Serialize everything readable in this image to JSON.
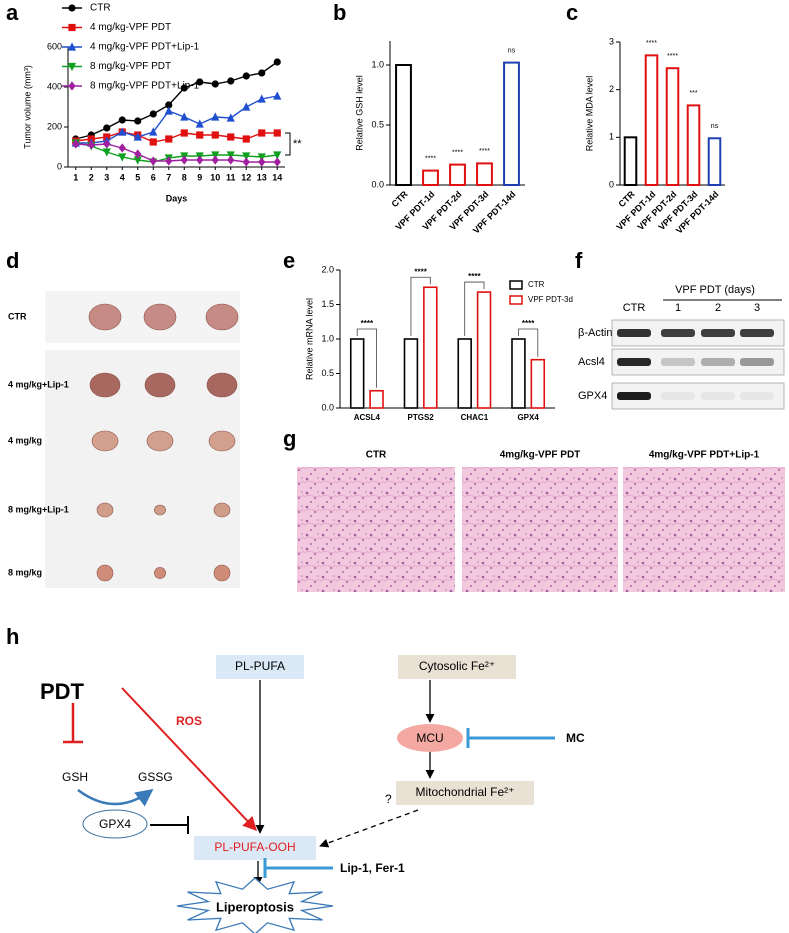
{
  "chart_data": [
    {
      "panel": "a",
      "type": "line",
      "x_label": "Days",
      "y_label": "Tumor volume (mm³)",
      "x": [
        1,
        2,
        3,
        4,
        5,
        6,
        7,
        8,
        9,
        10,
        11,
        12,
        13,
        14
      ],
      "xlim": [
        0.5,
        14.5
      ],
      "xticks": [
        1,
        2,
        3,
        4,
        5,
        6,
        7,
        8,
        9,
        10,
        11,
        12,
        13,
        14
      ],
      "ylim": [
        0,
        600
      ],
      "yticks": [
        0,
        200,
        400,
        600
      ],
      "legend": "top-left",
      "annotation": "**",
      "series": [
        {
          "name": "CTR",
          "color": "#000000",
          "marker": "circle",
          "values": [
            140,
            160,
            195,
            235,
            230,
            265,
            310,
            395,
            425,
            415,
            430,
            455,
            470,
            525
          ]
        },
        {
          "name": "4 mg/kg-VPF PDT",
          "color": "#e01010",
          "marker": "square",
          "values": [
            130,
            140,
            150,
            175,
            160,
            125,
            140,
            170,
            160,
            160,
            150,
            140,
            170,
            170
          ]
        },
        {
          "name": "4 mg/kg-VPF PDT+Lip-1",
          "color": "#1f4fd0",
          "marker": "triangle-up",
          "values": [
            120,
            120,
            130,
            175,
            150,
            175,
            280,
            250,
            215,
            250,
            245,
            300,
            340,
            355
          ]
        },
        {
          "name": "8 mg/kg-VPF PDT",
          "color": "#10a020",
          "marker": "triangle-down",
          "values": [
            120,
            105,
            75,
            50,
            35,
            25,
            45,
            55,
            55,
            60,
            60,
            55,
            50,
            60
          ]
        },
        {
          "name": "8 mg/kg-VPF PDT+Lip-1",
          "color": "#a020a0",
          "marker": "diamond",
          "values": [
            115,
            110,
            115,
            95,
            65,
            30,
            30,
            35,
            35,
            35,
            35,
            25,
            25,
            25
          ]
        }
      ]
    },
    {
      "panel": "b",
      "type": "bar",
      "y_label": "Relative GSH level",
      "categories": [
        "CTR",
        "VPF PDT-1d",
        "VPF PDT-2d",
        "VPF PDT-3d",
        "VPF PDT-14d"
      ],
      "values": [
        1.0,
        0.12,
        0.17,
        0.18,
        1.02
      ],
      "colors": [
        "#000000",
        "#e01010",
        "#e01010",
        "#e01010",
        "#1f3fb0"
      ],
      "annotations": [
        null,
        "****",
        "****",
        "****",
        "ns"
      ],
      "ylim": [
        0,
        1.2
      ],
      "yticks": [
        {
          "value": 0,
          "label": "0.0"
        },
        {
          "value": 0.5,
          "label": "0.5"
        },
        {
          "value": 1,
          "label": "1.0"
        }
      ]
    },
    {
      "panel": "c",
      "type": "bar",
      "y_label": "Relative MDA level",
      "categories": [
        "CTR",
        "VPF PDT-1d",
        "VPF PDT-2d",
        "VPF PDT-3d",
        "VPF PDT-14d"
      ],
      "values": [
        1.0,
        2.72,
        2.45,
        1.67,
        0.98
      ],
      "colors": [
        "#000000",
        "#e01010",
        "#e01010",
        "#e01010",
        "#1f3fb0"
      ],
      "annotations": [
        null,
        "****",
        "****",
        "***",
        "ns"
      ],
      "ylim": [
        0,
        3
      ],
      "yticks": [
        0,
        1,
        2,
        3
      ]
    },
    {
      "panel": "e",
      "type": "bar",
      "y_label": "Relative mRNA level",
      "categories": [
        "ACSL4",
        "PTGS2",
        "CHAC1",
        "GPX4"
      ],
      "series": [
        {
          "name": "CTR",
          "color": "#000000",
          "values": [
            1.0,
            1.0,
            1.0,
            1.0
          ]
        },
        {
          "name": "VPF PDT-3d",
          "color": "#e01010",
          "values": [
            0.25,
            1.75,
            1.68,
            0.7
          ]
        }
      ],
      "annotations": [
        "****",
        "****",
        "****",
        "****"
      ],
      "legend": "top-right",
      "ylim": [
        0,
        2
      ],
      "yticks": [
        {
          "value": 0,
          "label": "0.0"
        },
        {
          "value": 0.5,
          "label": "0.5"
        },
        {
          "value": 1,
          "label": "1.0"
        },
        {
          "value": 1.5,
          "label": "1.5"
        },
        {
          "value": 2,
          "label": "2.0"
        }
      ]
    }
  ],
  "photos": {
    "panel": "d",
    "rows": [
      "CTR",
      "4 mg/kg+Lip-1",
      "4 mg/kg",
      "8 mg/kg+Lip-1",
      "8 mg/kg"
    ]
  },
  "blot": {
    "panel": "f",
    "header": "VPF PDT (days)",
    "lanes": [
      "CTR",
      "1",
      "2",
      "3"
    ],
    "rows": [
      "β-Actin",
      "Acsl4",
      "GPX4"
    ]
  },
  "histology": {
    "panel": "g",
    "titles": [
      "CTR",
      "4mg/kg-VPF PDT",
      "4mg/kg-VPF PDT+Lip-1"
    ]
  },
  "diagram": {
    "panel": "h",
    "pdt": "PDT",
    "ros": "ROS",
    "pl_pufa": "PL-PUFA",
    "cytosolic_fe": "Cytosolic Fe²⁺",
    "mcu": "MCU",
    "mc": "MC",
    "gsh": "GSH",
    "gssg": "GSSG",
    "gpx4": "GPX4",
    "question": "?",
    "mito_fe": "Mitochondrial Fe²⁺",
    "pl_pufa_ooh": "PL-PUFA-OOH",
    "inhibitors": "Lip-1, Fer-1",
    "outcome": "Liperoptosis"
  }
}
